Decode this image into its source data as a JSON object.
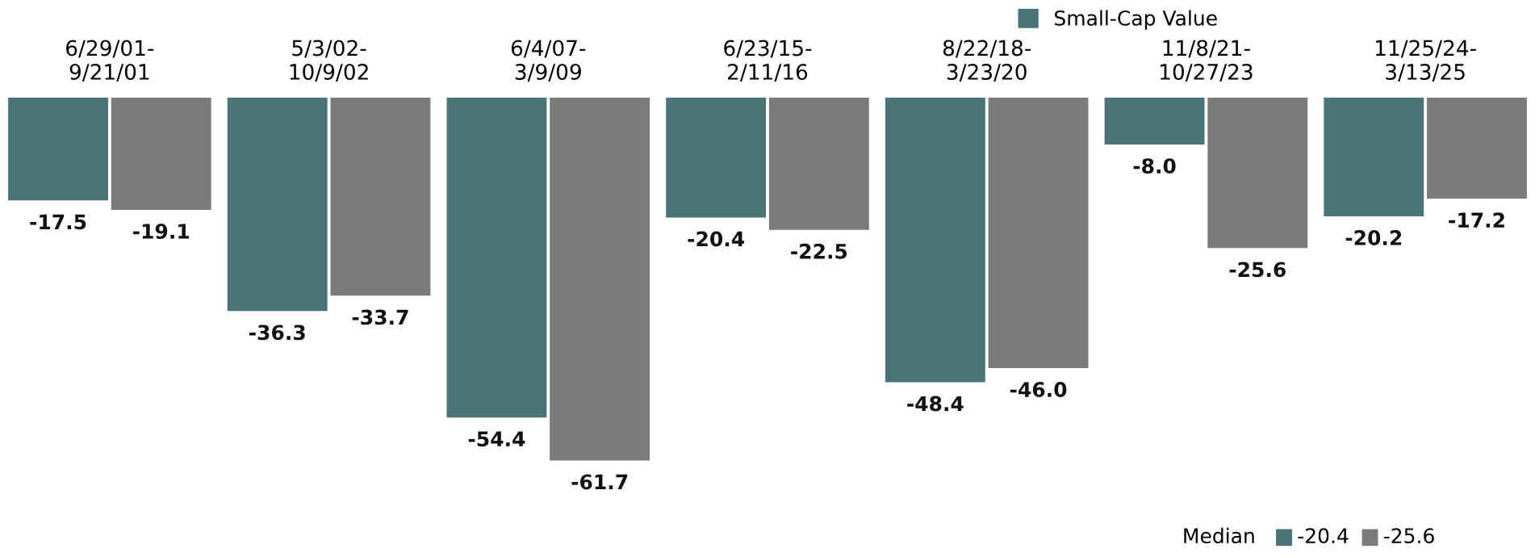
{
  "chart_data": {
    "type": "bar",
    "categories": [
      "6/29/01-\n9/21/01",
      "5/3/02-\n10/9/02",
      "6/4/07-\n3/9/09",
      "6/23/15-\n2/11/16",
      "8/22/18-\n3/23/20",
      "11/8/21-\n10/27/23",
      "11/25/24-\n3/13/25"
    ],
    "series": [
      {
        "name": "Small-Cap Value",
        "color": "#4a7478",
        "values": [
          -17.5,
          -36.3,
          -54.4,
          -20.4,
          -48.4,
          -8.0,
          -20.2
        ],
        "value_labels": [
          "-17.5",
          "-36.3",
          "-54.4",
          "-20.4",
          "-48.4",
          "-8.0",
          "-20.2"
        ]
      },
      {
        "color": "#7b7b7b",
        "values": [
          -19.1,
          -33.7,
          -61.7,
          -22.5,
          -46.0,
          -25.6,
          -17.2
        ],
        "value_labels": [
          "-19.1",
          "-33.7",
          "-61.7",
          "-22.5",
          "-46.0",
          "-25.6",
          "-17.2"
        ]
      }
    ],
    "legend": "top right",
    "grid": false,
    "annotations": [
      "Median",
      "-20.4",
      "-25.6"
    ]
  }
}
